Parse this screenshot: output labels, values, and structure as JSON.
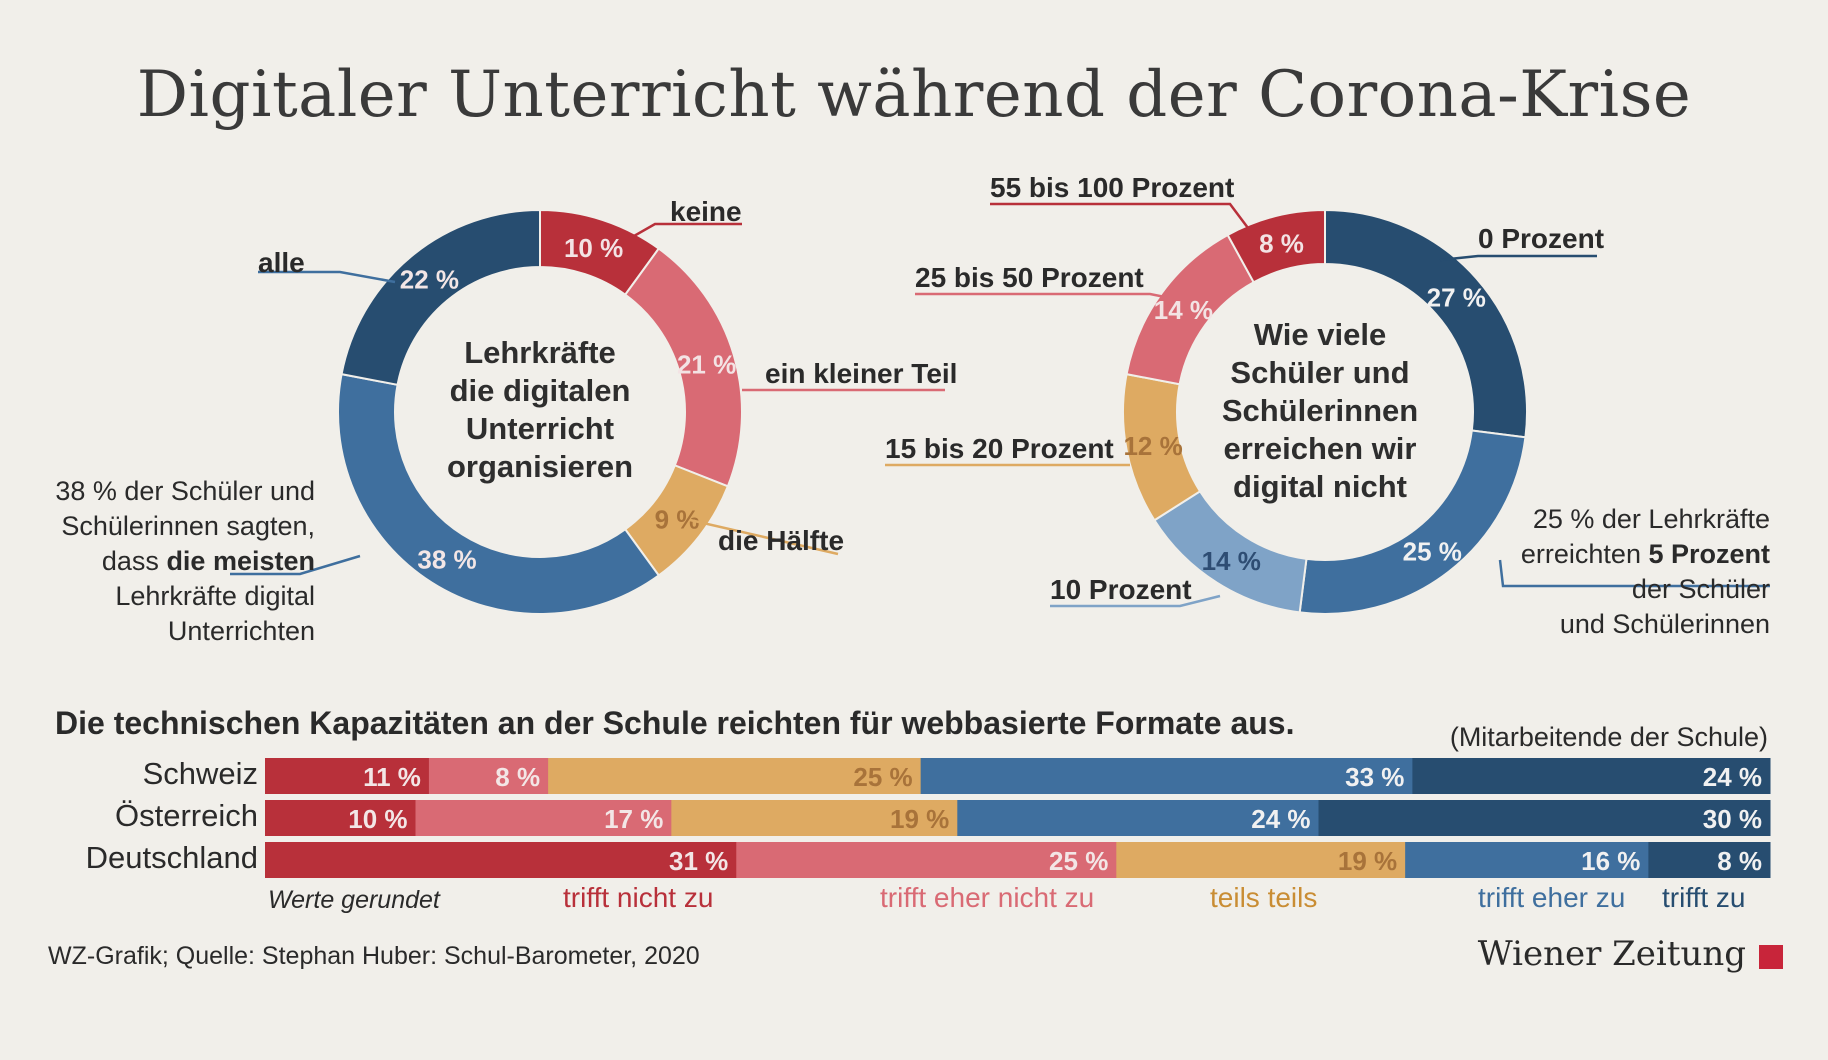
{
  "title": "Digitaler Unterricht während der Corona-Krise",
  "colors": {
    "dark_red": "#b8303a",
    "light_red": "#d96a74",
    "orange": "#deaa62",
    "light_blue": "#7fa3c7",
    "mid_blue": "#3f6f9e",
    "dark_blue": "#274d70"
  },
  "chart_data": [
    {
      "type": "pie",
      "variant": "donut",
      "center_text": [
        "Lehrkräfte",
        "die digitalen",
        "Unterricht",
        "organisieren"
      ],
      "slices": [
        {
          "label": "keine",
          "value": 10,
          "value_label": "10 %",
          "color": "#b8303a"
        },
        {
          "label": "ein kleiner Teil",
          "value": 21,
          "value_label": "21 %",
          "color": "#d96a74"
        },
        {
          "label": "die Hälfte",
          "value": 9,
          "value_label": "9 %",
          "color": "#deaa62"
        },
        {
          "label": "",
          "value": 38,
          "value_label": "38 %",
          "color": "#3f6f9e"
        },
        {
          "label": "alle",
          "value": 22,
          "value_label": "22 %",
          "color": "#274d70"
        }
      ],
      "annotation": {
        "lines": [
          "38 % der Schüler und",
          "Schülerinnen sagten,",
          "dass ",
          "die meisten",
          "Lehrkräfte digital",
          "Unterrichten"
        ]
      }
    },
    {
      "type": "pie",
      "variant": "donut",
      "center_text": [
        "Wie viele",
        "Schüler und",
        "Schülerinnen",
        "erreichen wir",
        "digital nicht"
      ],
      "slices": [
        {
          "label": "0 Prozent",
          "value": 27,
          "value_label": "27 %",
          "color": "#274d70"
        },
        {
          "label": "",
          "value": 25,
          "value_label": "25 %",
          "color": "#3f6f9e"
        },
        {
          "label": "10 Prozent",
          "value": 14,
          "value_label": "14 %",
          "color": "#7fa3c7"
        },
        {
          "label": "15 bis 20 Prozent",
          "value": 12,
          "value_label": "12 %",
          "color": "#deaa62"
        },
        {
          "label": "25 bis 50 Prozent",
          "value": 14,
          "value_label": "14 %",
          "color": "#d96a74"
        },
        {
          "label": "55 bis 100 Prozent",
          "value": 8,
          "value_label": "8 %",
          "color": "#b8303a"
        }
      ],
      "annotation": {
        "lines": [
          "25 % der Lehrkräfte",
          "erreichten ",
          "5 Prozent",
          "der Schüler",
          "und Schülerinnen"
        ]
      }
    },
    {
      "type": "bar",
      "orientation": "horizontal",
      "stacked": true,
      "title": "Die technischen Kapazitäten an der Schule reichten für webbasierte Formate aus.",
      "subtitle": "(Mitarbeitende der Schule)",
      "categories": [
        "Schweiz",
        "Österreich",
        "Deutschland"
      ],
      "series": [
        {
          "name": "trifft nicht zu",
          "color": "#b8303a",
          "values": [
            11,
            10,
            31
          ],
          "value_labels": [
            "11 %",
            "10 %",
            "31 %"
          ]
        },
        {
          "name": "trifft eher nicht zu",
          "color": "#d96a74",
          "values": [
            8,
            17,
            25
          ],
          "value_labels": [
            "8 %",
            "17 %",
            "25 %"
          ]
        },
        {
          "name": "teils teils",
          "color": "#deaa62",
          "values": [
            25,
            19,
            19
          ],
          "value_labels": [
            "25 %",
            "19 %",
            "19 %"
          ]
        },
        {
          "name": "trifft eher zu",
          "color": "#3f6f9e",
          "values": [
            33,
            24,
            16
          ],
          "value_labels": [
            "33 %",
            "24 %",
            "16 %"
          ]
        },
        {
          "name": "trifft zu",
          "color": "#274d70",
          "values": [
            24,
            30,
            8
          ],
          "value_labels": [
            "24 %",
            "30 %",
            "8 %"
          ]
        }
      ],
      "note": "Werte gerundet"
    }
  ],
  "source": "WZ-Grafik; Quelle: Stephan Huber: Schul-Barometer, 2020",
  "brand": "Wiener Zeitung"
}
